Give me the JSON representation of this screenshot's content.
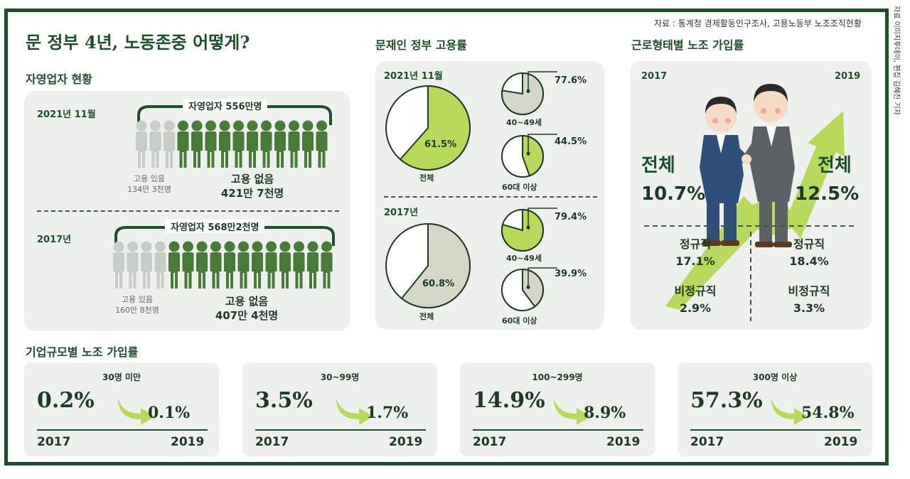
{
  "title": "문 정부 4년, 노동존중 어떻게?",
  "source": "자료 : 통계청 경제활동인구조사, 고용노동부 노조조직현황",
  "credit": "자료 이미지투데이, 편집 김혜진 기자",
  "self_employed": {
    "title": "자영업자 현황",
    "rows": [
      {
        "year": "2021년 11월",
        "total": "자영업자 556만명",
        "with_label": "고용 있음",
        "with_value": "134만 3천명",
        "without_label": "고용 없음",
        "without_value": "421만 7천명",
        "with_share": 0.24
      },
      {
        "year": "2017년",
        "total": "자영업자 568만2천명",
        "with_label": "고용 있음",
        "with_value": "160만 8천명",
        "without_label": "고용 없음",
        "without_value": "407만 4천명",
        "with_share": 0.28
      }
    ]
  },
  "employment": {
    "title": "문재인 정부 고용률",
    "groups": [
      {
        "year": "2021년 11월",
        "total_label": "전체",
        "total_value": "61.5%",
        "total_rate": 61.5,
        "sub": [
          {
            "label": "40~49세",
            "value": "77.6%",
            "rate": 77.6
          },
          {
            "label": "60대 이상",
            "value": "44.5%",
            "rate": 44.5
          }
        ]
      },
      {
        "year": "2017년",
        "total_label": "전체",
        "total_value": "60.8%",
        "total_rate": 60.8,
        "sub": [
          {
            "label": "40~49세",
            "value": "79.4%",
            "rate": 79.4
          },
          {
            "label": "60대 이상",
            "value": "39.9%",
            "rate": 39.9
          }
        ]
      }
    ]
  },
  "union_type": {
    "title": "근로형태별 노조 가입률",
    "year_left": "2017",
    "year_right": "2019",
    "total_label": "전체",
    "total_left": "10.7%",
    "total_right": "12.5%",
    "regular_label": "정규직",
    "regular_left": "17.1%",
    "regular_right": "18.4%",
    "irregular_label": "비정규직",
    "irregular_left": "2.9%",
    "irregular_right": "3.3%"
  },
  "union_size": {
    "title": "기업규모별 노조 가입률",
    "year_from": "2017",
    "year_to": "2019",
    "cards": [
      {
        "label": "30명 미만",
        "from": "0.2%",
        "to": "0.1%"
      },
      {
        "label": "30~99명",
        "from": "3.5%",
        "to": "1.7%"
      },
      {
        "label": "100~299명",
        "from": "14.9%",
        "to": "8.9%"
      },
      {
        "label": "300명 이상",
        "from": "57.3%",
        "to": "54.8%"
      }
    ]
  },
  "colors": {
    "frame": "#1e4f2b",
    "accent": "#b9d95a",
    "dark_green": "#4a7a3a",
    "grey_person": "#c6ccc6",
    "pie_grey": "#d4d6c8"
  }
}
